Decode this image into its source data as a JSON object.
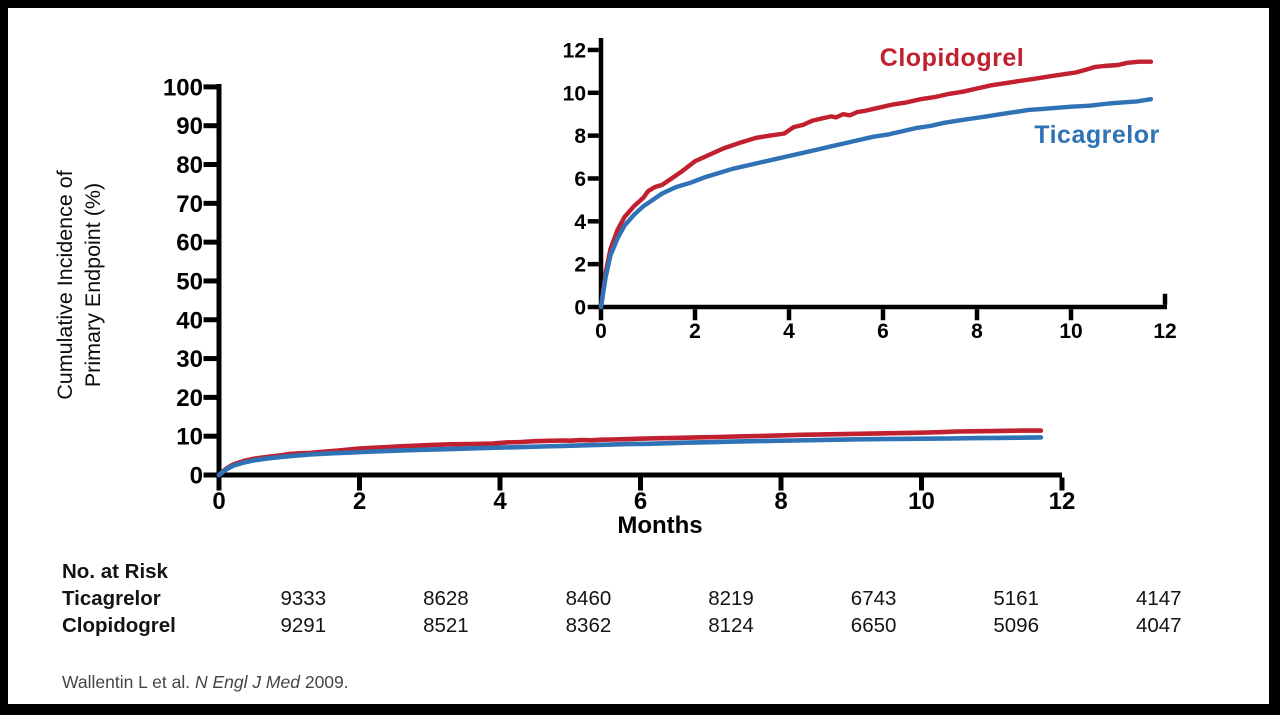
{
  "chart_data": {
    "type": "line",
    "title": "",
    "xlabel": "Months",
    "ylabel_line1": "Cumulative Incidence of",
    "ylabel_line2": "Primary Endpoint (%)",
    "main_axis": {
      "xlim": [
        0,
        12
      ],
      "ylim": [
        0,
        100
      ],
      "xticks": [
        0,
        2,
        4,
        6,
        8,
        10,
        12
      ],
      "yticks": [
        0,
        10,
        20,
        30,
        40,
        50,
        60,
        70,
        80,
        90,
        100
      ]
    },
    "inset_axis": {
      "xlim": [
        0,
        12
      ],
      "ylim": [
        0,
        12
      ],
      "xticks": [
        0,
        2,
        4,
        6,
        8,
        10,
        12
      ],
      "yticks": [
        0,
        2,
        4,
        6,
        8,
        10,
        12
      ]
    },
    "grid": false,
    "legend_position": "inset-top-right (Clopidogrel above red curve, Ticagrelor below blue curve)",
    "series": [
      {
        "name": "Clopidogrel",
        "color": "#c1202f",
        "x": [
          0,
          0.1,
          0.2,
          0.35,
          0.5,
          0.7,
          0.9,
          1.0,
          1.15,
          1.3,
          1.5,
          1.7,
          2.0,
          2.3,
          2.6,
          3.0,
          3.3,
          3.6,
          3.9,
          4.1,
          4.3,
          4.5,
          4.7,
          4.9,
          5.0,
          5.15,
          5.3,
          5.45,
          5.6,
          5.9,
          6.2,
          6.5,
          6.8,
          7.1,
          7.4,
          7.7,
          8.0,
          8.3,
          8.6,
          8.9,
          9.2,
          9.5,
          9.8,
          10.1,
          10.35,
          10.5,
          10.7,
          11.0,
          11.2,
          11.45,
          11.7
        ],
        "y": [
          0,
          1.6,
          2.7,
          3.6,
          4.2,
          4.7,
          5.1,
          5.4,
          5.6,
          5.7,
          6.0,
          6.3,
          6.8,
          7.1,
          7.4,
          7.7,
          7.9,
          8.0,
          8.1,
          8.4,
          8.5,
          8.7,
          8.8,
          8.9,
          8.85,
          9.0,
          8.95,
          9.1,
          9.15,
          9.3,
          9.45,
          9.55,
          9.7,
          9.8,
          9.95,
          10.05,
          10.2,
          10.35,
          10.45,
          10.55,
          10.65,
          10.75,
          10.85,
          10.95,
          11.1,
          11.2,
          11.25,
          11.3,
          11.4,
          11.45,
          11.45
        ]
      },
      {
        "name": "Ticagrelor",
        "color": "#2f73b6",
        "x": [
          0,
          0.1,
          0.2,
          0.35,
          0.5,
          0.7,
          0.9,
          1.1,
          1.3,
          1.6,
          1.9,
          2.2,
          2.5,
          2.8,
          3.1,
          3.4,
          3.7,
          4.0,
          4.3,
          4.6,
          4.9,
          5.2,
          5.5,
          5.8,
          6.1,
          6.4,
          6.7,
          7.0,
          7.3,
          7.6,
          7.9,
          8.2,
          8.5,
          8.8,
          9.1,
          9.4,
          9.7,
          10.0,
          10.4,
          10.8,
          11.1,
          11.4,
          11.7
        ],
        "y": [
          0,
          1.4,
          2.4,
          3.2,
          3.8,
          4.3,
          4.7,
          5.0,
          5.3,
          5.6,
          5.8,
          6.05,
          6.25,
          6.45,
          6.6,
          6.75,
          6.9,
          7.05,
          7.2,
          7.35,
          7.5,
          7.65,
          7.8,
          7.95,
          8.05,
          8.2,
          8.35,
          8.45,
          8.6,
          8.7,
          8.8,
          8.9,
          9.0,
          9.1,
          9.2,
          9.25,
          9.3,
          9.35,
          9.4,
          9.5,
          9.55,
          9.6,
          9.7
        ]
      }
    ]
  },
  "legend": {
    "clopidogrel": "Clopidogrel",
    "ticagrelor": "Ticagrelor"
  },
  "colors": {
    "clopidogrel": "#c1202f",
    "ticagrelor": "#2f73b6",
    "axis": "#000000",
    "citation": "#454545"
  },
  "risk_table": {
    "header": "No. at Risk",
    "rows": [
      {
        "label": "Ticagrelor",
        "values": [
          "9333",
          "8628",
          "8460",
          "8219",
          "6743",
          "5161",
          "4147"
        ]
      },
      {
        "label": "Clopidogrel",
        "values": [
          "9291",
          "8521",
          "8362",
          "8124",
          "6650",
          "5096",
          "4047"
        ]
      }
    ]
  },
  "citation": {
    "prefix": "Wallentin L et al. ",
    "journal": "N Engl J Med",
    "suffix": " 2009."
  }
}
